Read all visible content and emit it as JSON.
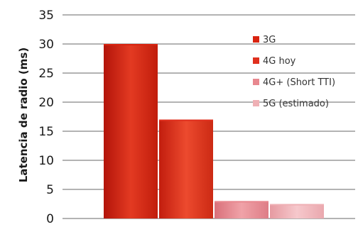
{
  "chart_data": {
    "type": "bar",
    "ylabel": "Latencia de radio (ms)",
    "ylim": [
      0,
      35
    ],
    "yticks": [
      0,
      5,
      10,
      15,
      20,
      25,
      30,
      35
    ],
    "grid": true,
    "legend_position": "right",
    "series": [
      {
        "name": "3G",
        "value": 30,
        "color": "#d9230f"
      },
      {
        "name": "4G hoy",
        "value": 17,
        "color": "#e0301e"
      },
      {
        "name": "4G+ (Short TTI)",
        "value": 3,
        "color": "#e8888f"
      },
      {
        "name": "5G (estimado)",
        "value": 2.5,
        "color": "#efb0b5"
      }
    ]
  }
}
